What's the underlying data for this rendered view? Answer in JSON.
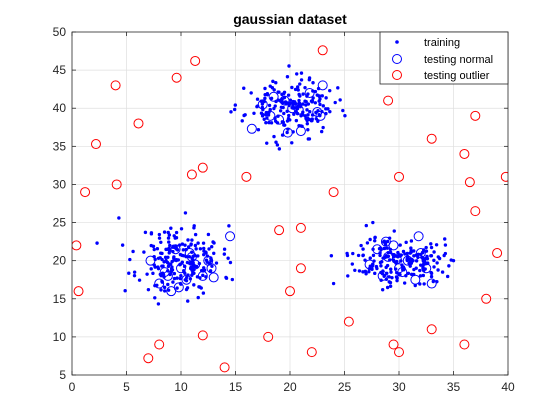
{
  "chart_data": {
    "type": "scatter",
    "title": "gaussian dataset",
    "xlabel": "",
    "ylabel": "",
    "xlim": [
      0,
      40
    ],
    "ylim": [
      5,
      50
    ],
    "xticks": [
      0,
      5,
      10,
      15,
      20,
      25,
      30,
      35,
      40
    ],
    "yticks": [
      5,
      10,
      15,
      20,
      25,
      30,
      35,
      40,
      45,
      50
    ],
    "grid": true,
    "legend_position": "top-right",
    "series": [
      {
        "name": "training",
        "marker": "dot",
        "color": "#0000ff",
        "clusters": [
          {
            "center": [
              10,
              20
            ],
            "sd": [
              1.9,
              2.3
            ],
            "count": 220,
            "seed": 11
          },
          {
            "center": [
              20,
              40
            ],
            "sd": [
              2.0,
              1.8
            ],
            "count": 200,
            "seed": 23
          },
          {
            "center": [
              30,
              20
            ],
            "sd": [
              2.0,
              1.6
            ],
            "count": 200,
            "seed": 37
          }
        ],
        "x": [
          2.3,
          4.3,
          11.0,
          14.0,
          27.0,
          27.6,
          24.0,
          25.3,
          34.0,
          35.0
        ],
        "y": [
          22.3,
          25.6,
          22.7,
          21.5,
          24.6,
          25.0,
          17.0,
          18.0,
          18.5,
          20.0
        ]
      },
      {
        "name": "testing normal",
        "marker": "circle",
        "color": "#0000ff",
        "x": [
          7.2,
          8.0,
          8.5,
          9.1,
          9.5,
          10.0,
          10.5,
          11.0,
          11.3,
          12.0,
          12.5,
          13.0,
          14.5,
          9.8,
          8.8,
          10.8,
          12.8,
          16.5,
          17.5,
          18.2,
          19.0,
          19.5,
          20.2,
          21.0,
          21.8,
          22.5,
          23.0,
          18.5,
          20.8,
          22.8,
          19.8,
          27.3,
          28.0,
          28.5,
          29.0,
          29.5,
          30.0,
          30.8,
          31.5,
          32.0,
          32.5,
          33.0,
          28.8,
          30.3,
          31.8,
          29.8
        ],
        "y": [
          20.0,
          17.0,
          18.5,
          16.0,
          21.5,
          19.0,
          17.5,
          20.5,
          19.5,
          18.0,
          20.0,
          17.8,
          23.2,
          16.5,
          18.0,
          21.0,
          19.0,
          37.3,
          40.5,
          39.0,
          38.5,
          41.0,
          40.0,
          37.0,
          42.0,
          39.5,
          43.0,
          41.5,
          39.8,
          39.0,
          36.8,
          19.5,
          21.5,
          18.0,
          20.5,
          22.0,
          19.0,
          20.0,
          17.5,
          21.0,
          19.0,
          17.0,
          22.5,
          18.5,
          23.2,
          20.2
        ]
      },
      {
        "name": "testing outlier",
        "marker": "circle",
        "color": "#ff0000",
        "x": [
          0.4,
          0.6,
          1.2,
          2.2,
          4.0,
          4.1,
          6.1,
          7.0,
          8.0,
          9.6,
          11.0,
          11.3,
          12.0,
          12.0,
          14.0,
          16.0,
          18.0,
          19.0,
          20.0,
          21.0,
          21.0,
          22.0,
          23.0,
          24.0,
          25.4,
          29.0,
          29.5,
          30.0,
          30.0,
          33.0,
          33.0,
          36.0,
          36.0,
          36.5,
          37.0,
          37.0,
          38.0,
          39.0,
          39.8
        ],
        "y": [
          22.0,
          16.0,
          29.0,
          35.3,
          43.0,
          30.0,
          38.0,
          7.2,
          9.0,
          44.0,
          31.3,
          46.2,
          32.2,
          10.2,
          6.0,
          31.0,
          10.0,
          24.0,
          16.0,
          24.3,
          19.0,
          8.0,
          47.6,
          29.0,
          12.0,
          41.0,
          9.0,
          31.0,
          8.0,
          36.0,
          11.0,
          34.0,
          9.0,
          30.3,
          39.0,
          26.5,
          15.0,
          21.0,
          31.0
        ]
      }
    ]
  }
}
